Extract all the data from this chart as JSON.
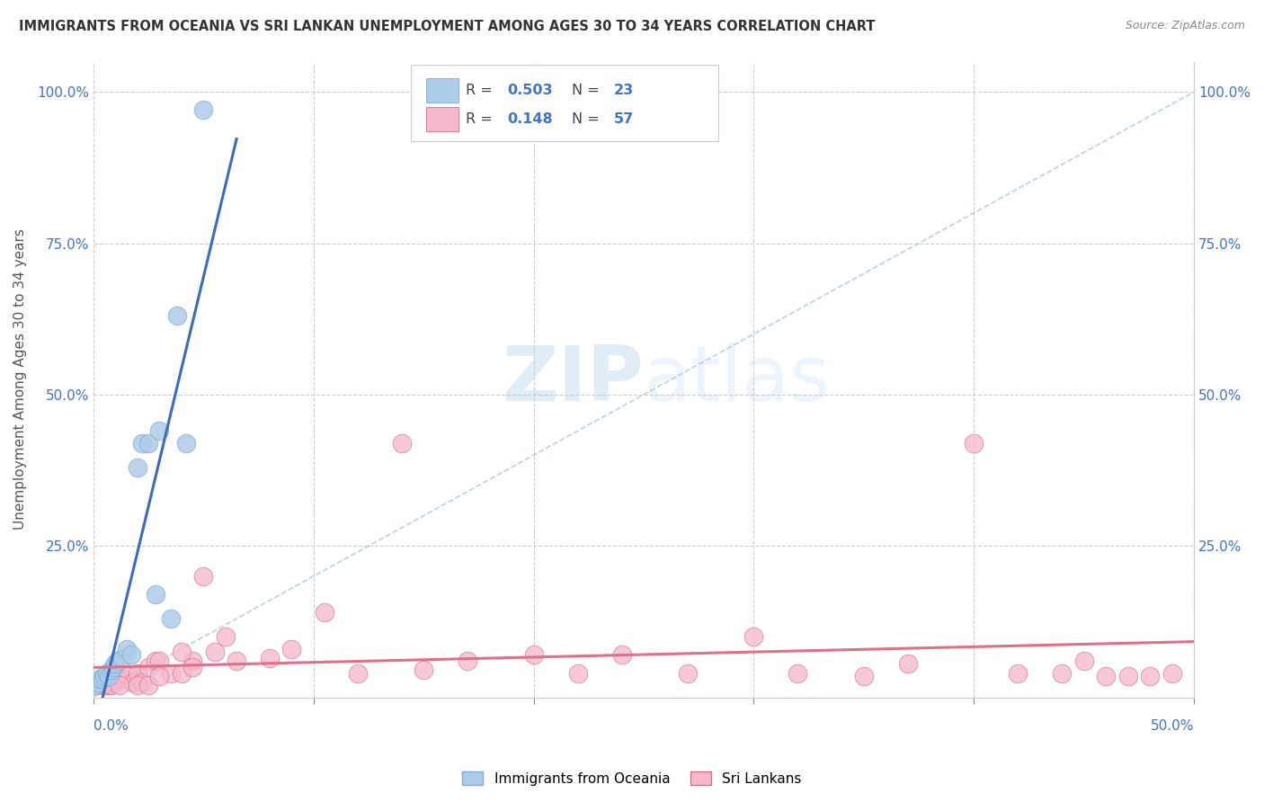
{
  "title": "IMMIGRANTS FROM OCEANIA VS SRI LANKAN UNEMPLOYMENT AMONG AGES 30 TO 34 YEARS CORRELATION CHART",
  "source": "Source: ZipAtlas.com",
  "ylabel": "Unemployment Among Ages 30 to 34 years",
  "xlim": [
    0,
    0.5
  ],
  "ylim": [
    0,
    1.05
  ],
  "r_oceania": 0.503,
  "n_oceania": 23,
  "r_srilanka": 0.148,
  "n_srilanka": 57,
  "color_oceania": "#aecce8",
  "color_oceania_edge": "#7baed4",
  "color_oceania_line": "#3a6bbd",
  "color_srilanka": "#f5b8cc",
  "color_srilanka_edge": "#d4708a",
  "color_srilanka_line": "#e0708a",
  "color_diagonal": "#b0c4d8",
  "background": "#ffffff",
  "oceania_x": [
    0.001,
    0.002,
    0.003,
    0.004,
    0.005,
    0.006,
    0.007,
    0.008,
    0.009,
    0.01,
    0.011,
    0.013,
    0.015,
    0.017,
    0.02,
    0.022,
    0.025,
    0.028,
    0.03,
    0.035,
    0.038,
    0.042,
    0.05
  ],
  "oceania_y": [
    0.02,
    0.025,
    0.03,
    0.03,
    0.035,
    0.04,
    0.035,
    0.045,
    0.05,
    0.055,
    0.06,
    0.065,
    0.08,
    0.07,
    0.38,
    0.42,
    0.42,
    0.17,
    0.44,
    0.13,
    0.63,
    0.42,
    0.97
  ],
  "srilanka_x": [
    0.001,
    0.002,
    0.003,
    0.004,
    0.005,
    0.006,
    0.007,
    0.008,
    0.009,
    0.01,
    0.012,
    0.014,
    0.016,
    0.018,
    0.02,
    0.022,
    0.025,
    0.028,
    0.03,
    0.035,
    0.04,
    0.045,
    0.05,
    0.055,
    0.065,
    0.08,
    0.09,
    0.105,
    0.12,
    0.14,
    0.15,
    0.17,
    0.2,
    0.22,
    0.24,
    0.27,
    0.3,
    0.32,
    0.35,
    0.37,
    0.4,
    0.42,
    0.44,
    0.45,
    0.46,
    0.47,
    0.48,
    0.49,
    0.005,
    0.008,
    0.012,
    0.02,
    0.025,
    0.03,
    0.04,
    0.045,
    0.06
  ],
  "srilanka_y": [
    0.02,
    0.025,
    0.025,
    0.02,
    0.025,
    0.025,
    0.02,
    0.03,
    0.025,
    0.035,
    0.03,
    0.03,
    0.035,
    0.025,
    0.04,
    0.025,
    0.05,
    0.06,
    0.06,
    0.04,
    0.04,
    0.06,
    0.2,
    0.075,
    0.06,
    0.065,
    0.08,
    0.14,
    0.04,
    0.42,
    0.045,
    0.06,
    0.07,
    0.04,
    0.07,
    0.04,
    0.1,
    0.04,
    0.035,
    0.055,
    0.42,
    0.04,
    0.04,
    0.06,
    0.035,
    0.035,
    0.035,
    0.04,
    0.02,
    0.02,
    0.02,
    0.02,
    0.02,
    0.035,
    0.075,
    0.05,
    0.1
  ]
}
